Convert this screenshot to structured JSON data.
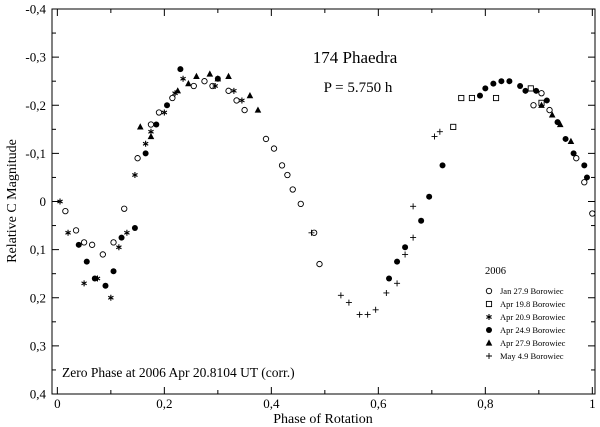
{
  "chart_data": {
    "type": "scatter",
    "title": "174 Phaedra",
    "subtitle": "P = 5.750 h",
    "xlabel": "Phase of Rotation",
    "ylabel": "Relative C Magnitude",
    "xlim": [
      -0.01,
      1.005
    ],
    "ylim": [
      -0.4,
      0.4
    ],
    "y_inverted": true,
    "x_ticks": [
      {
        "value": 0,
        "label": "0"
      },
      {
        "value": 0.2,
        "label": "0,2"
      },
      {
        "value": 0.4,
        "label": "0,4"
      },
      {
        "value": 0.6,
        "label": "0,6"
      },
      {
        "value": 0.8,
        "label": "0,8"
      },
      {
        "value": 1.0,
        "label": "1"
      }
    ],
    "y_ticks": [
      {
        "value": -0.4,
        "label": "-0,4"
      },
      {
        "value": -0.3,
        "label": "-0,3"
      },
      {
        "value": -0.2,
        "label": "-0,2"
      },
      {
        "value": -0.1,
        "label": "-0,1"
      },
      {
        "value": 0,
        "label": "0"
      },
      {
        "value": 0.1,
        "label": "0,1"
      },
      {
        "value": 0.2,
        "label": "0,2"
      },
      {
        "value": 0.3,
        "label": "0,3"
      },
      {
        "value": 0.4,
        "label": "0,4"
      }
    ],
    "legend_title": "2006",
    "legend_position": "bottom-right",
    "annotation": "Zero Phase at 2006 Apr 20.8104 UT (corr.)",
    "grid": false,
    "series": [
      {
        "name": "Jan 27.9 Borowiec",
        "marker": "open-circle",
        "x": [
          0.015,
          0.035,
          0.05,
          0.065,
          0.085,
          0.105,
          0.125,
          0.15,
          0.175,
          0.19,
          0.215,
          0.255,
          0.275,
          0.29,
          0.32,
          0.335,
          0.35,
          0.39,
          0.405,
          0.42,
          0.43,
          0.44,
          0.455,
          0.48,
          0.49,
          0.89,
          0.905,
          0.92,
          0.97,
          0.985,
          1.0
        ],
        "y": [
          0.02,
          0.06,
          0.085,
          0.09,
          0.11,
          0.085,
          0.015,
          -0.09,
          -0.16,
          -0.185,
          -0.215,
          -0.24,
          -0.25,
          -0.24,
          -0.23,
          -0.21,
          -0.19,
          -0.13,
          -0.11,
          -0.075,
          -0.055,
          -0.025,
          0.005,
          0.065,
          0.13,
          -0.2,
          -0.225,
          -0.19,
          -0.09,
          -0.04,
          0.025
        ]
      },
      {
        "name": "Apr 19.8 Borowiec",
        "marker": "open-square",
        "x": [
          0.74,
          0.755,
          0.775,
          0.82,
          0.885,
          0.905
        ],
        "y": [
          -0.155,
          -0.215,
          -0.215,
          -0.215,
          -0.235,
          -0.205
        ]
      },
      {
        "name": "Apr 20.9 Borowiec",
        "marker": "asterisk",
        "x": [
          0.005,
          0.02,
          0.05,
          0.075,
          0.1,
          0.115,
          0.13,
          0.145,
          0.165,
          0.175,
          0.2,
          0.22,
          0.235,
          0.295,
          0.33,
          0.345
        ],
        "y": [
          0.0,
          0.065,
          0.17,
          0.16,
          0.2,
          0.095,
          0.065,
          -0.055,
          -0.12,
          -0.145,
          -0.185,
          -0.225,
          -0.255,
          -0.24,
          -0.23,
          -0.21
        ]
      },
      {
        "name": "Apr 24.9 Borowiec",
        "marker": "filled-circle",
        "x": [
          0.04,
          0.055,
          0.07,
          0.09,
          0.105,
          0.12,
          0.145,
          0.165,
          0.185,
          0.205,
          0.23,
          0.3,
          0.62,
          0.635,
          0.65,
          0.68,
          0.695,
          0.72,
          0.79,
          0.8,
          0.815,
          0.83,
          0.845,
          0.865,
          0.875,
          0.895,
          0.915,
          0.935,
          0.95,
          0.965,
          0.985,
          0.99
        ],
        "y": [
          0.09,
          0.125,
          0.16,
          0.175,
          0.145,
          0.075,
          0.055,
          -0.1,
          -0.16,
          -0.2,
          -0.275,
          -0.255,
          0.16,
          0.125,
          0.095,
          0.04,
          -0.01,
          -0.075,
          -0.22,
          -0.235,
          -0.245,
          -0.25,
          -0.25,
          -0.24,
          -0.23,
          -0.23,
          -0.21,
          -0.165,
          -0.13,
          -0.1,
          -0.075,
          -0.05
        ]
      },
      {
        "name": "Apr 27.9 Borowiec",
        "marker": "filled-triangle",
        "x": [
          0.155,
          0.175,
          0.225,
          0.245,
          0.26,
          0.285,
          0.3,
          0.32,
          0.36,
          0.375,
          0.905,
          0.925,
          0.94,
          0.96
        ],
        "y": [
          -0.155,
          -0.135,
          -0.23,
          -0.245,
          -0.26,
          -0.265,
          -0.255,
          -0.26,
          -0.22,
          -0.19,
          -0.2,
          -0.18,
          -0.16,
          -0.125
        ]
      },
      {
        "name": "May 4.9 Borowiec",
        "marker": "plus",
        "x": [
          0.475,
          0.53,
          0.545,
          0.565,
          0.58,
          0.595,
          0.615,
          0.635,
          0.65,
          0.665,
          0.665,
          0.705,
          0.715
        ],
        "y": [
          0.065,
          0.195,
          0.21,
          0.235,
          0.235,
          0.225,
          0.19,
          0.17,
          0.11,
          0.075,
          0.01,
          -0.135,
          -0.145
        ]
      }
    ]
  }
}
